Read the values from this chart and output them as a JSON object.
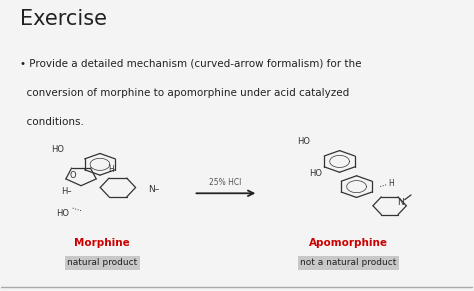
{
  "title": "Exercise",
  "bullet_line1": "• Provide a detailed mechanism (curved-arrow formalism) for the",
  "bullet_line2": "  conversion of morphine to apomorphine under acid catalyzed",
  "bullet_line3": "  conditions.",
  "morphine_label": "Morphine",
  "morphine_sublabel": "natural product",
  "apomorphine_label": "Apomorphine",
  "apomorphine_sublabel": "not a natural product",
  "reaction_condition": "25% HCl",
  "bg_color": "#f4f4f4",
  "title_color": "#222222",
  "text_color": "#222222",
  "red_color": "#cc0000",
  "sublabel_bg": "#c8c8c8",
  "arrow_color": "#222222",
  "fig_width": 4.74,
  "fig_height": 2.91
}
